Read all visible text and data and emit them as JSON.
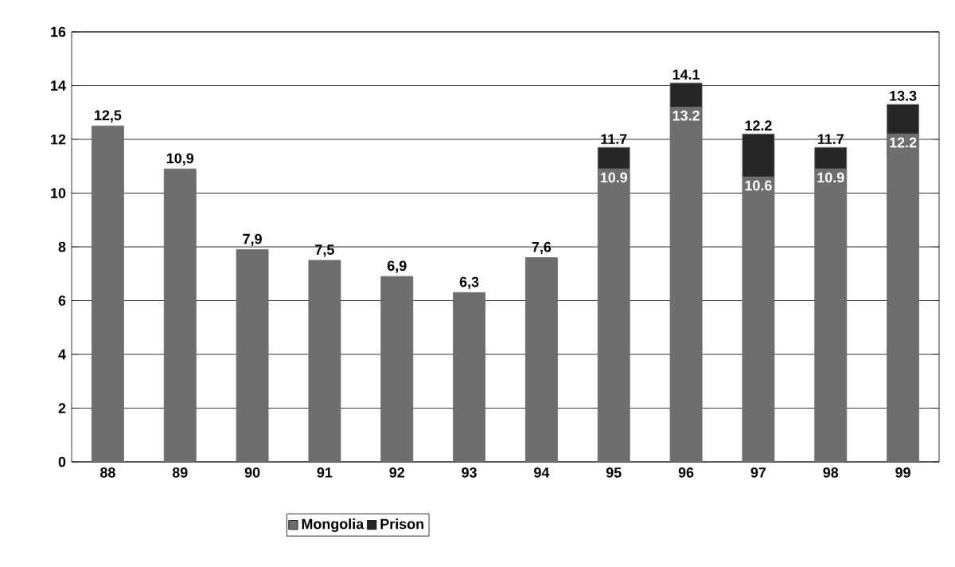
{
  "chart_data": {
    "type": "bar",
    "stacked": true,
    "categories": [
      "88",
      "89",
      "90",
      "91",
      "92",
      "93",
      "94",
      "95",
      "96",
      "97",
      "98",
      "99"
    ],
    "series": [
      {
        "name": "Mongolia",
        "color": "#6e6e6e",
        "values": [
          12.5,
          10.9,
          7.9,
          7.5,
          6.9,
          6.3,
          7.6,
          10.9,
          13.2,
          10.6,
          10.9,
          12.2
        ],
        "value_labels": [
          "12,5",
          "10,9",
          "7,9",
          "7,5",
          "6,9",
          "6,3",
          "7,6",
          "10.9",
          "13.2",
          "10.6",
          "10.9",
          "12.2"
        ]
      },
      {
        "name": "Prison",
        "color": "#262626",
        "values": [
          null,
          null,
          null,
          null,
          null,
          null,
          null,
          0.8,
          0.9,
          1.6,
          0.8,
          1.1
        ]
      }
    ],
    "totals": [
      null,
      null,
      null,
      null,
      null,
      null,
      null,
      "11.7",
      "14.1",
      "12.2",
      "11.7",
      "13.3"
    ],
    "ylim": [
      0,
      16
    ],
    "yticks": [
      0,
      2,
      4,
      6,
      8,
      10,
      12,
      14,
      16
    ],
    "grid": "y",
    "legend": "bottom"
  }
}
